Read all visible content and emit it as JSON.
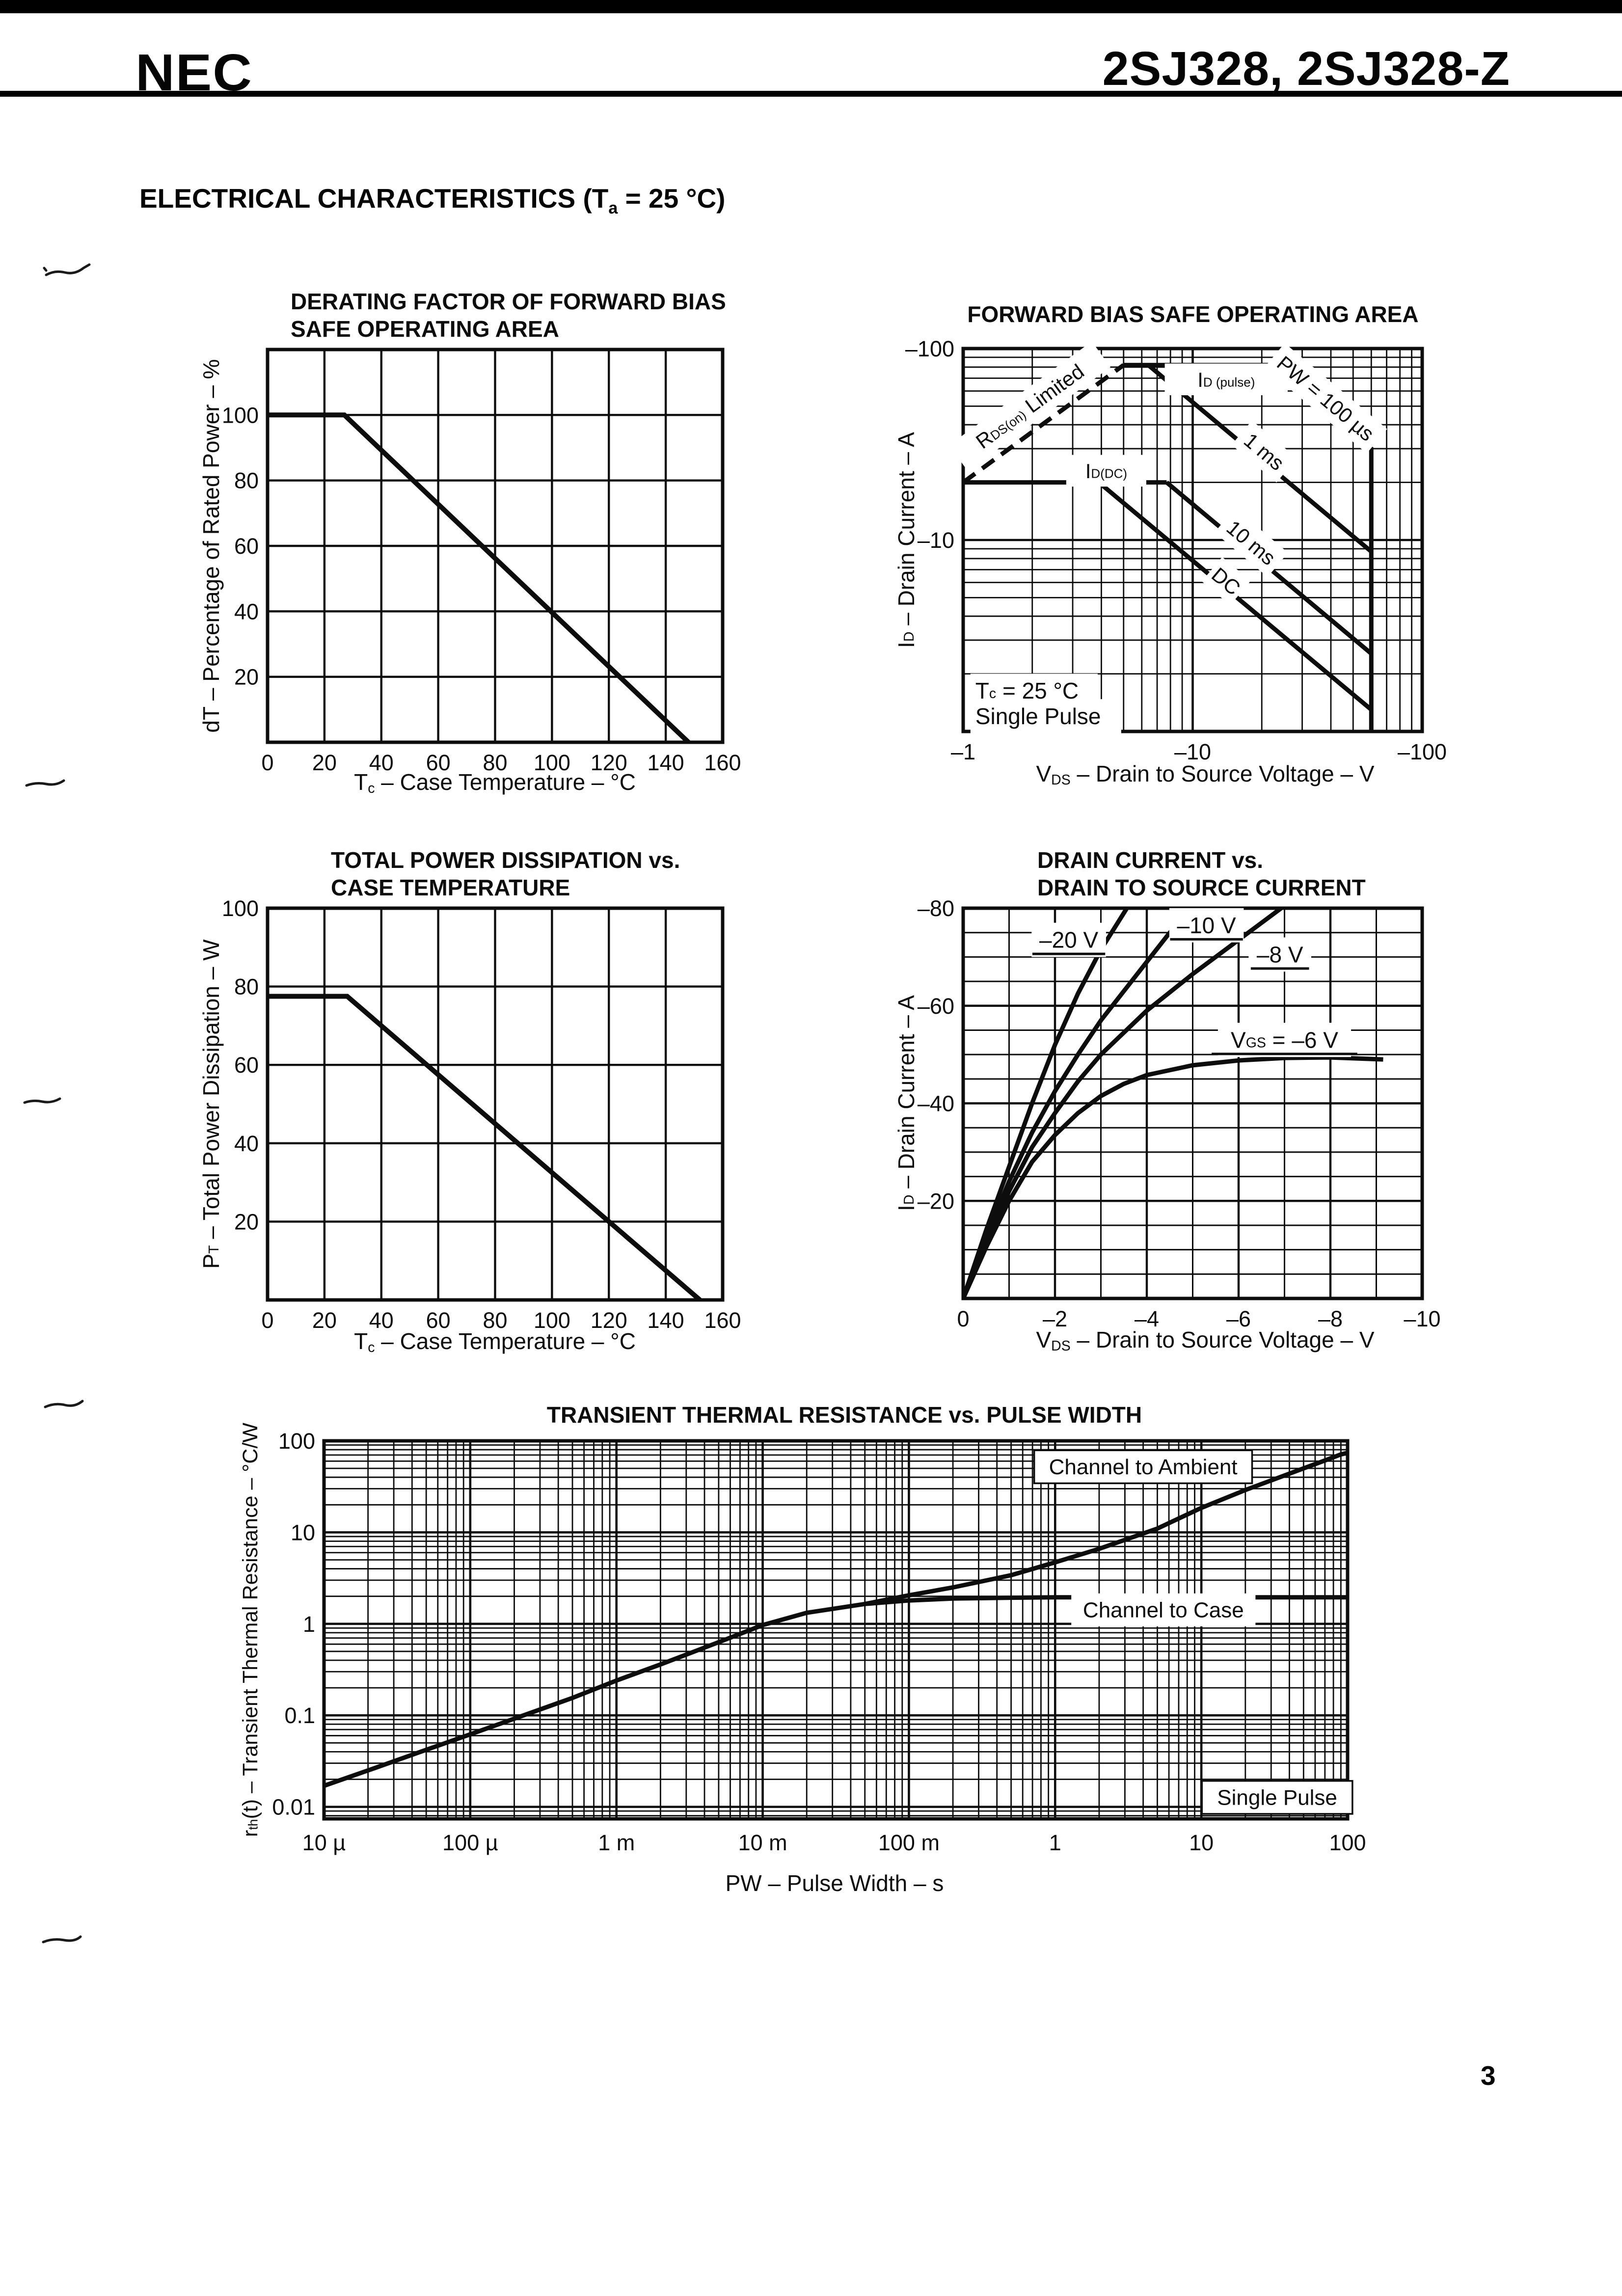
{
  "page": {
    "header": {
      "logo": "NEC",
      "part_number": "2SJ328, 2SJ328-Z"
    },
    "section_title": "ELECTRICAL CHARACTERISTICS (T~a~ = 25 °C)",
    "page_number": "3"
  },
  "chart_data": [
    {
      "name": "derating-factor-of-forward-bias-soa",
      "type": "line",
      "title_lines": [
        "DERATING FACTOR OF FORWARD BIAS",
        "SAFE OPERATING AREA"
      ],
      "xlabel": "T~c~ – Case Temperature – °C",
      "ylabel": "dT – Percentage of Rated Power – %",
      "grid": true,
      "x": {
        "scale": "linear",
        "min": 0,
        "max": 160,
        "major": 20,
        "minor": 20,
        "ticks": [
          [
            0,
            "0"
          ],
          [
            20,
            "20"
          ],
          [
            40,
            "40"
          ],
          [
            60,
            "60"
          ],
          [
            80,
            "80"
          ],
          [
            100,
            "100"
          ],
          [
            120,
            "120"
          ],
          [
            140,
            "140"
          ],
          [
            160,
            "160"
          ]
        ]
      },
      "y": {
        "scale": "linear",
        "min": 0,
        "max": 120,
        "major": 20,
        "minor": 20,
        "ticks": [
          [
            20,
            "20"
          ],
          [
            40,
            "40"
          ],
          [
            60,
            "60"
          ],
          [
            80,
            "80"
          ],
          [
            100,
            "100"
          ]
        ]
      },
      "series": [
        {
          "name": "derating-line",
          "w": 10,
          "points": [
            [
              0,
              100
            ],
            [
              27,
              100
            ],
            [
              148,
              0
            ]
          ]
        }
      ],
      "annotations": []
    },
    {
      "name": "forward-bias-safe-operating-area",
      "type": "line",
      "title_lines": [
        "FORWARD BIAS SAFE OPERATING AREA"
      ],
      "xlabel": "V~DS~ – Drain to Source Voltage – V",
      "ylabel": "I~D~ – Drain Current – A",
      "grid": true,
      "x": {
        "scale": "log",
        "min": 1,
        "max": 100,
        "ticks": [
          [
            1,
            "–1"
          ],
          [
            10,
            "–10"
          ],
          [
            100,
            "–100"
          ]
        ]
      },
      "y": {
        "scale": "log",
        "min": 1,
        "max": 100,
        "ticks": [
          [
            10,
            "–10"
          ],
          [
            100,
            "–100"
          ]
        ]
      },
      "series": [
        {
          "name": "rds-on-limit-line",
          "dash": true,
          "w": 9,
          "points": [
            [
              1,
              20
            ],
            [
              5,
              82
            ]
          ]
        },
        {
          "name": "pw-100us-boundary",
          "w": 9,
          "points": [
            [
              5,
              82
            ],
            [
              22,
              82
            ],
            [
              60,
              30
            ],
            [
              60,
              1
            ]
          ]
        },
        {
          "name": "pw-1ms-line",
          "w": 9,
          "points": [
            [
              6.4,
              82
            ],
            [
              60,
              8.7
            ]
          ]
        },
        {
          "name": "id-dc-flat-line",
          "w": 9,
          "points": [
            [
              1,
              20
            ],
            [
              7.7,
              20
            ]
          ]
        },
        {
          "name": "pw-10ms-line",
          "w": 9,
          "points": [
            [
              7.7,
              20
            ],
            [
              60,
              2.55
            ]
          ]
        },
        {
          "name": "dc-limit-line",
          "w": 9,
          "points": [
            [
              3.9,
              20
            ],
            [
              60,
              1.3
            ]
          ]
        }
      ],
      "annotations": [
        {
          "name": "rds-on-limited-label",
          "text": "R~DS(on)~ Limited",
          "x": 1.95,
          "y": 50,
          "rot": -36,
          "fs": 42,
          "bg": true
        },
        {
          "name": "id-pulse-label",
          "text": "I~D (pulse)~",
          "x": 14,
          "y": 69,
          "fs": 42,
          "bg": true
        },
        {
          "name": "pw-100us-label",
          "text": "PW = 100 µs",
          "x": 38,
          "y": 55,
          "rot": 40,
          "fs": 42,
          "bg": true
        },
        {
          "name": "pw-1ms-label",
          "text": "1 ms",
          "x": 20.5,
          "y": 29,
          "rot": 40,
          "fs": 42,
          "bg": true
        },
        {
          "name": "pw-10ms-label",
          "text": "10 ms",
          "x": 18,
          "y": 9.7,
          "rot": 40,
          "fs": 42,
          "bg": true
        },
        {
          "name": "dc-label",
          "text": "DC",
          "x": 14,
          "y": 6.1,
          "rot": 40,
          "fs": 42,
          "bg": true
        },
        {
          "name": "id-dc-label",
          "text": "I~D(DC)~",
          "x": 4.2,
          "y": 23,
          "fs": 42,
          "bg": true
        },
        {
          "name": "tc-condition-note",
          "text": "T~c~ = 25 °C",
          "x": 1.13,
          "y": 1.63,
          "fs": 46,
          "anchor": "start",
          "bg": true
        },
        {
          "name": "single-pulse-note",
          "text": "Single Pulse",
          "x": 1.13,
          "y": 1.2,
          "fs": 46,
          "anchor": "start",
          "bg": true
        }
      ]
    },
    {
      "name": "total-power-dissipation-vs-case-temperature",
      "type": "line",
      "title_lines": [
        "TOTAL POWER DISSIPATION vs.",
        "CASE TEMPERATURE"
      ],
      "xlabel": "T~c~ – Case Temperature – °C",
      "ylabel": "P~T~ – Total Power Dissipation – W",
      "grid": true,
      "x": {
        "scale": "linear",
        "min": 0,
        "max": 160,
        "major": 20,
        "minor": 20,
        "ticks": [
          [
            0,
            "0"
          ],
          [
            20,
            "20"
          ],
          [
            40,
            "40"
          ],
          [
            60,
            "60"
          ],
          [
            80,
            "80"
          ],
          [
            100,
            "100"
          ],
          [
            120,
            "120"
          ],
          [
            140,
            "140"
          ],
          [
            160,
            "160"
          ]
        ]
      },
      "y": {
        "scale": "linear",
        "min": 0,
        "max": 100,
        "major": 20,
        "minor": 20,
        "ticks": [
          [
            20,
            "20"
          ],
          [
            40,
            "40"
          ],
          [
            60,
            "60"
          ],
          [
            80,
            "80"
          ],
          [
            100,
            "100"
          ]
        ]
      },
      "series": [
        {
          "name": "power-derating-line",
          "w": 10,
          "points": [
            [
              0,
              77.5
            ],
            [
              28,
              77.5
            ],
            [
              152,
              0
            ]
          ]
        }
      ],
      "annotations": []
    },
    {
      "name": "drain-current-vs-drain-to-source-voltage",
      "type": "line",
      "title_lines": [
        "DRAIN CURRENT vs.",
        "DRAIN TO SOURCE CURRENT"
      ],
      "xlabel": "V~DS~ – Drain to Source Voltage – V",
      "ylabel": "I~D~ – Drain Current – A",
      "grid": true,
      "x": {
        "scale": "linear",
        "min": 0,
        "max": 10,
        "major": 2,
        "minor": 1,
        "ticks": [
          [
            0,
            "0"
          ],
          [
            2,
            "–2"
          ],
          [
            4,
            "–4"
          ],
          [
            6,
            "–6"
          ],
          [
            8,
            "–8"
          ],
          [
            10,
            "–10"
          ]
        ]
      },
      "y": {
        "scale": "linear",
        "min": 0,
        "max": 80,
        "major": 20,
        "minor": 5,
        "ticks": [
          [
            20,
            "–20"
          ],
          [
            40,
            "–40"
          ],
          [
            60,
            "–60"
          ],
          [
            80,
            "–80"
          ]
        ]
      },
      "series": [
        {
          "name": "vgs-minus-20v-curve",
          "w": 9,
          "points": [
            [
              0,
              0
            ],
            [
              0.5,
              14
            ],
            [
              1,
              27
            ],
            [
              1.5,
              40
            ],
            [
              2,
              52
            ],
            [
              2.5,
              62.5
            ],
            [
              3,
              71.5
            ],
            [
              3.6,
              80.5
            ]
          ]
        },
        {
          "name": "vgs-minus-10v-curve",
          "w": 9,
          "points": [
            [
              0,
              0
            ],
            [
              0.5,
              12.5
            ],
            [
              1,
              24
            ],
            [
              1.5,
              34
            ],
            [
              2,
              42.5
            ],
            [
              2.5,
              50
            ],
            [
              3,
              57
            ],
            [
              3.5,
              63
            ],
            [
              4,
              69
            ],
            [
              4.5,
              75
            ],
            [
              5.1,
              80.5
            ]
          ]
        },
        {
          "name": "vgs-minus-8v-curve",
          "w": 9,
          "points": [
            [
              0,
              0
            ],
            [
              0.5,
              11.5
            ],
            [
              1,
              22
            ],
            [
              1.5,
              31
            ],
            [
              2,
              38
            ],
            [
              2.5,
              44.5
            ],
            [
              3,
              50
            ],
            [
              4,
              59
            ],
            [
              5,
              66.5
            ],
            [
              6,
              73.5
            ],
            [
              7,
              80.5
            ]
          ]
        },
        {
          "name": "vgs-minus-6v-curve",
          "w": 9,
          "points": [
            [
              0,
              0
            ],
            [
              0.5,
              10.5
            ],
            [
              1,
              20
            ],
            [
              1.5,
              28
            ],
            [
              2,
              33.5
            ],
            [
              2.5,
              38
            ],
            [
              3,
              41.5
            ],
            [
              3.5,
              44
            ],
            [
              4,
              45.8
            ],
            [
              5,
              47.8
            ],
            [
              6,
              48.8
            ],
            [
              7,
              49.3
            ],
            [
              8,
              49.4
            ],
            [
              9.15,
              49
            ]
          ]
        }
      ],
      "annotations": [
        {
          "name": "vgs-20v-label",
          "text": "–20 V",
          "x": 2.3,
          "y": 73.5,
          "fs": 46,
          "underline": true,
          "bg": true
        },
        {
          "name": "vgs-10v-label",
          "text": "–10 V",
          "x": 5.3,
          "y": 76.5,
          "fs": 46,
          "underline": true,
          "bg": true
        },
        {
          "name": "vgs-8v-label",
          "text": "–8 V",
          "x": 6.9,
          "y": 70.5,
          "fs": 46,
          "underline": true,
          "bg": true
        },
        {
          "name": "vgs-6v-label",
          "text": "V~GS~ = –6 V",
          "x": 7.0,
          "y": 53,
          "fs": 46,
          "underline": true,
          "bg": true
        }
      ]
    },
    {
      "name": "transient-thermal-resistance-vs-pulse-width",
      "type": "line",
      "title_lines": [
        "TRANSIENT THERMAL RESISTANCE vs. PULSE WIDTH"
      ],
      "xlabel": "PW – Pulse Width – s",
      "ylabel": "r~th~(t) – Transient Thermal Resistance – °C/W",
      "grid": true,
      "x": {
        "scale": "log",
        "min": 1e-05,
        "max": 100,
        "ticks": [
          [
            1e-05,
            "10 µ"
          ],
          [
            0.0001,
            "100 µ"
          ],
          [
            0.001,
            "1 m"
          ],
          [
            0.01,
            "10 m"
          ],
          [
            0.1,
            "100 m"
          ],
          [
            1,
            "1"
          ],
          [
            10,
            "10"
          ],
          [
            100,
            "100"
          ]
        ]
      },
      "y": {
        "scale": "log",
        "min": 0.0074,
        "max": 100,
        "ticks": [
          [
            0.01,
            "0.01"
          ],
          [
            0.1,
            "0.1"
          ],
          [
            1,
            "1"
          ],
          [
            10,
            "10"
          ],
          [
            100,
            "100"
          ]
        ]
      },
      "series": [
        {
          "name": "channel-to-case-curve",
          "w": 9,
          "points": [
            [
              1e-05,
              0.017
            ],
            [
              2e-05,
              0.025
            ],
            [
              5e-05,
              0.042
            ],
            [
              0.0001,
              0.062
            ],
            [
              0.0002,
              0.092
            ],
            [
              0.0005,
              0.155
            ],
            [
              0.001,
              0.24
            ],
            [
              0.002,
              0.36
            ],
            [
              0.005,
              0.63
            ],
            [
              0.01,
              0.97
            ],
            [
              0.02,
              1.32
            ],
            [
              0.05,
              1.65
            ],
            [
              0.1,
              1.8
            ],
            [
              0.2,
              1.89
            ],
            [
              0.5,
              1.93
            ],
            [
              1,
              1.95
            ],
            [
              100,
              1.95
            ]
          ]
        },
        {
          "name": "channel-to-ambient-curve",
          "w": 9,
          "points": [
            [
              0.05,
              1.65
            ],
            [
              0.1,
              2.05
            ],
            [
              0.2,
              2.5
            ],
            [
              0.5,
              3.4
            ],
            [
              1,
              4.7
            ],
            [
              2,
              6.6
            ],
            [
              5,
              11
            ],
            [
              10,
              18.5
            ],
            [
              20,
              29
            ],
            [
              50,
              50
            ],
            [
              70,
              61
            ],
            [
              90,
              71
            ],
            [
              100,
              74
            ]
          ]
        }
      ],
      "annotations": [
        {
          "name": "channel-to-ambient-label",
          "text": "Channel to Ambient",
          "x": 4,
          "y": 52,
          "fs": 44,
          "box": true
        },
        {
          "name": "channel-to-case-label",
          "text": "Channel to Case",
          "x": 5.5,
          "y": 1.42,
          "fs": 44,
          "bg": true
        },
        {
          "name": "single-pulse-label",
          "text": "Single Pulse",
          "x": 33,
          "y": 0.0127,
          "fs": 44,
          "box": true
        }
      ]
    }
  ]
}
